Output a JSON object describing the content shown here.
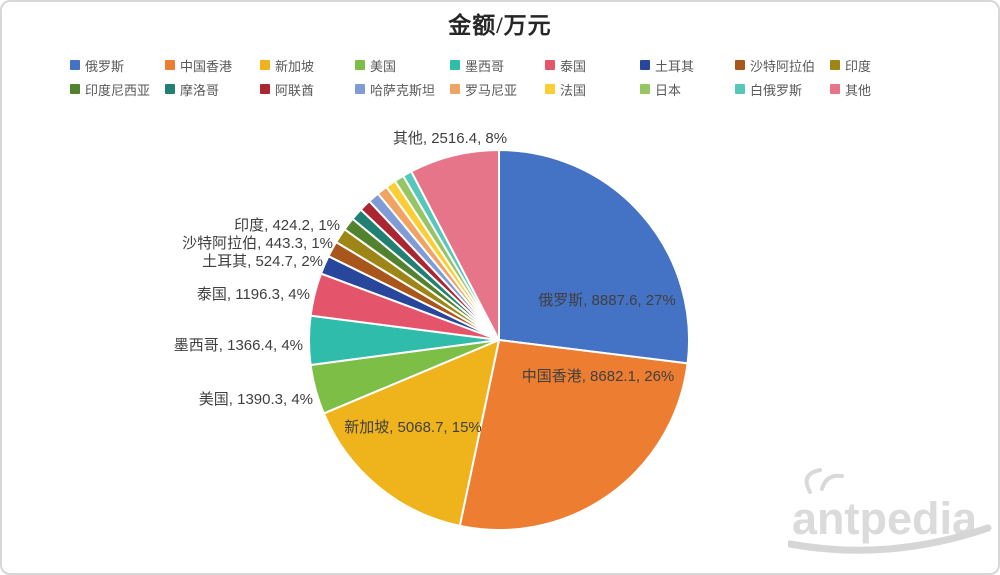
{
  "chart_data": {
    "type": "pie",
    "title": "金额/万元",
    "legend_position": "top",
    "label_format": "name, value, percent",
    "slices": [
      {
        "name": "俄罗斯",
        "value": 8887.6,
        "pct": "27%",
        "label": "俄罗斯, 8887.6, 27%",
        "color": "#4472C4"
      },
      {
        "name": "中国香港",
        "value": 8682.1,
        "pct": "26%",
        "label": "中国香港, 8682.1, 26%",
        "color": "#ED7D31"
      },
      {
        "name": "新加坡",
        "value": 5068.7,
        "pct": "15%",
        "label": "新加坡, 5068.7, 15%",
        "color": "#EFB41B"
      },
      {
        "name": "美国",
        "value": 1390.3,
        "pct": "4%",
        "label": "美国, 1390.3, 4%",
        "color": "#7CBE46"
      },
      {
        "name": "墨西哥",
        "value": 1366.4,
        "pct": "4%",
        "label": "墨西哥, 1366.4, 4%",
        "color": "#30BCAB"
      },
      {
        "name": "泰国",
        "value": 1196.3,
        "pct": "4%",
        "label": "泰国, 1196.3, 4%",
        "color": "#E4556C"
      },
      {
        "name": "土耳其",
        "value": 524.7,
        "pct": "2%",
        "label": "土耳其, 524.7, 2%",
        "color": "#28479C"
      },
      {
        "name": "沙特阿拉伯",
        "value": 443.3,
        "pct": "1%",
        "label": "沙特阿拉伯, 443.3, 1%",
        "color": "#A9561C"
      },
      {
        "name": "印度",
        "value": 424.2,
        "pct": "1%",
        "label": "印度, 424.2, 1%",
        "color": "#9D8616"
      },
      {
        "name": "印度尼西亚",
        "value": 360,
        "estimated": true,
        "label": "",
        "color": "#53822F"
      },
      {
        "name": "摩洛哥",
        "value": 345,
        "estimated": true,
        "label": "",
        "color": "#208072"
      },
      {
        "name": "阿联酋",
        "value": 330,
        "estimated": true,
        "label": "",
        "color": "#AC2631"
      },
      {
        "name": "哈萨克斯坦",
        "value": 315,
        "estimated": true,
        "label": "",
        "color": "#7F9CD7"
      },
      {
        "name": "罗马尼亚",
        "value": 300,
        "estimated": true,
        "label": "",
        "color": "#F0A363"
      },
      {
        "name": "法国",
        "value": 285,
        "estimated": true,
        "label": "",
        "color": "#FBCE33"
      },
      {
        "name": "日本",
        "value": 270,
        "estimated": true,
        "label": "",
        "color": "#95C663"
      },
      {
        "name": "白俄罗斯",
        "value": 255,
        "estimated": true,
        "label": "",
        "color": "#55C8BB"
      },
      {
        "name": "其他",
        "value": 2516.4,
        "pct": "8%",
        "label": "其他, 2516.4, 8%",
        "color": "#E7758A"
      }
    ]
  },
  "watermark": {
    "text": "antpedia"
  },
  "style": {
    "label_color": "#404040",
    "legend_text_color": "#595959",
    "slice_border_color": "#FFFFFF"
  }
}
